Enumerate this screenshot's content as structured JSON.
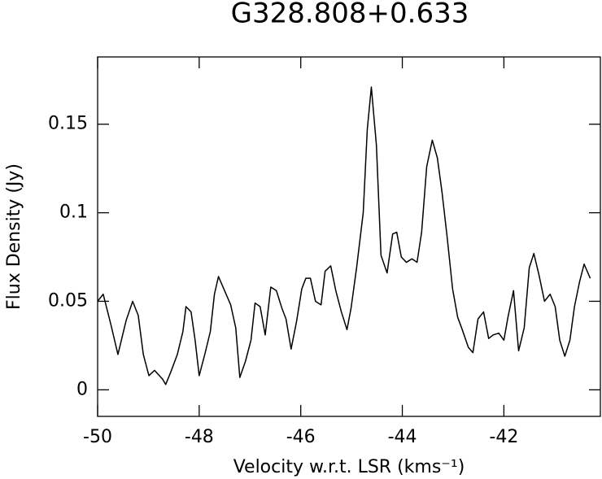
{
  "chart_data": {
    "type": "line",
    "title": "G328.808+0.633",
    "xlabel": "Velocity w.r.t. LSR (kms⁻¹)",
    "ylabel": "Flux Density (Jy)",
    "color": "#000000",
    "xlim": [
      -50,
      -40.1
    ],
    "ylim": [
      -0.015,
      0.188
    ],
    "xticks": [
      -50,
      -48,
      -46,
      -44,
      -42
    ],
    "yticks": [
      0,
      0.05,
      0.1,
      0.15
    ],
    "x": [
      -50.0,
      -49.89,
      -49.74,
      -49.6,
      -49.44,
      -49.31,
      -49.2,
      -49.1,
      -48.99,
      -48.88,
      -48.72,
      -48.66,
      -48.56,
      -48.43,
      -48.32,
      -48.26,
      -48.16,
      -48.08,
      -48.0,
      -47.89,
      -47.78,
      -47.7,
      -47.62,
      -47.5,
      -47.38,
      -47.28,
      -47.2,
      -47.09,
      -46.98,
      -46.9,
      -46.8,
      -46.7,
      -46.59,
      -46.48,
      -46.37,
      -46.29,
      -46.19,
      -46.08,
      -45.98,
      -45.9,
      -45.81,
      -45.71,
      -45.6,
      -45.52,
      -45.41,
      -45.31,
      -45.2,
      -45.09,
      -45.01,
      -44.9,
      -44.77,
      -44.69,
      -44.61,
      -44.51,
      -44.42,
      -44.3,
      -44.19,
      -44.11,
      -44.02,
      -43.92,
      -43.81,
      -43.71,
      -43.62,
      -43.52,
      -43.41,
      -43.31,
      -43.22,
      -43.12,
      -43.01,
      -42.91,
      -42.82,
      -42.7,
      -42.61,
      -42.51,
      -42.4,
      -42.3,
      -42.21,
      -42.1,
      -42.0,
      -41.92,
      -41.81,
      -41.71,
      -41.6,
      -41.5,
      -41.41,
      -41.31,
      -41.2,
      -41.09,
      -40.99,
      -40.9,
      -40.8,
      -40.7,
      -40.61,
      -40.51,
      -40.42,
      -40.3
    ],
    "values": [
      0.05,
      0.054,
      0.037,
      0.02,
      0.039,
      0.05,
      0.042,
      0.02,
      0.008,
      0.011,
      0.006,
      0.003,
      0.01,
      0.02,
      0.033,
      0.047,
      0.044,
      0.028,
      0.008,
      0.02,
      0.033,
      0.054,
      0.064,
      0.056,
      0.048,
      0.035,
      0.007,
      0.016,
      0.028,
      0.049,
      0.047,
      0.031,
      0.058,
      0.056,
      0.046,
      0.04,
      0.023,
      0.039,
      0.057,
      0.063,
      0.063,
      0.05,
      0.048,
      0.067,
      0.07,
      0.056,
      0.044,
      0.034,
      0.046,
      0.069,
      0.1,
      0.147,
      0.171,
      0.138,
      0.076,
      0.066,
      0.088,
      0.089,
      0.075,
      0.072,
      0.074,
      0.072,
      0.089,
      0.126,
      0.141,
      0.131,
      0.112,
      0.087,
      0.057,
      0.041,
      0.034,
      0.024,
      0.021,
      0.04,
      0.044,
      0.029,
      0.031,
      0.032,
      0.028,
      0.041,
      0.056,
      0.022,
      0.035,
      0.069,
      0.077,
      0.065,
      0.05,
      0.054,
      0.047,
      0.028,
      0.019,
      0.028,
      0.047,
      0.061,
      0.071,
      0.063
    ]
  }
}
